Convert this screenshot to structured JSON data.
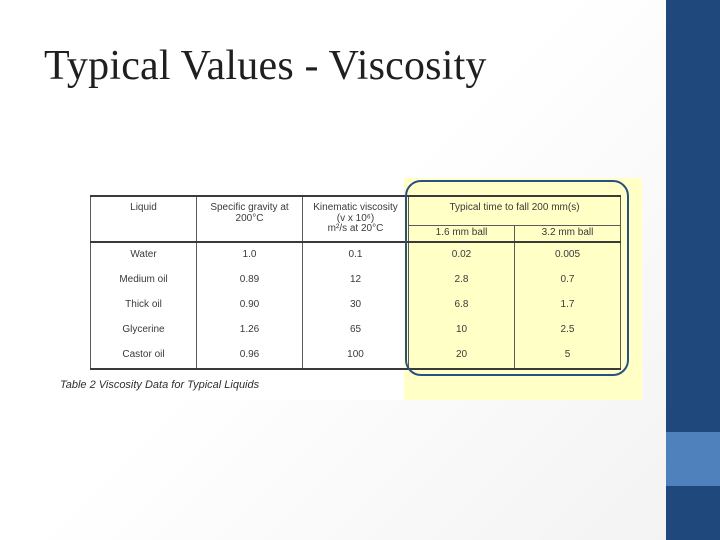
{
  "slide": {
    "title": "Typical Values - Viscosity"
  },
  "table": {
    "caption": "Table 2  Viscosity Data for Typical Liquids",
    "headers": {
      "liquid": "Liquid",
      "specific_gravity_line1": "Specific gravity at",
      "specific_gravity_line2": "200°C",
      "kinematic_line1": "Kinematic viscosity",
      "kinematic_line2": "(v x 10⁶)",
      "kinematic_line3": "m²/s at 20°C",
      "fall_time": "Typical time to fall 200 mm(s)",
      "ball_small": "1.6 mm ball",
      "ball_large": "3.2 mm ball"
    },
    "rows": [
      {
        "liquid": "Water",
        "specific_gravity": "1.0",
        "kinematic_viscosity": "0.1",
        "time_small": "0.02",
        "time_large": "0.005"
      },
      {
        "liquid": "Medium oil",
        "specific_gravity": "0.89",
        "kinematic_viscosity": "12",
        "time_small": "2.8",
        "time_large": "0.7"
      },
      {
        "liquid": "Thick oil",
        "specific_gravity": "0.90",
        "kinematic_viscosity": "30",
        "time_small": "6.8",
        "time_large": "1.7"
      },
      {
        "liquid": "Glycerine",
        "specific_gravity": "1.26",
        "kinematic_viscosity": "65",
        "time_small": "10",
        "time_large": "2.5"
      },
      {
        "liquid": "Castor oil",
        "specific_gravity": "0.96",
        "kinematic_viscosity": "100",
        "time_small": "20",
        "time_large": "5"
      }
    ]
  },
  "colors": {
    "accent_dark": "#1f497d",
    "accent_light": "#4f81bd",
    "highlight_fill": "#ffffc6",
    "highlight_border": "#2a4f88"
  }
}
